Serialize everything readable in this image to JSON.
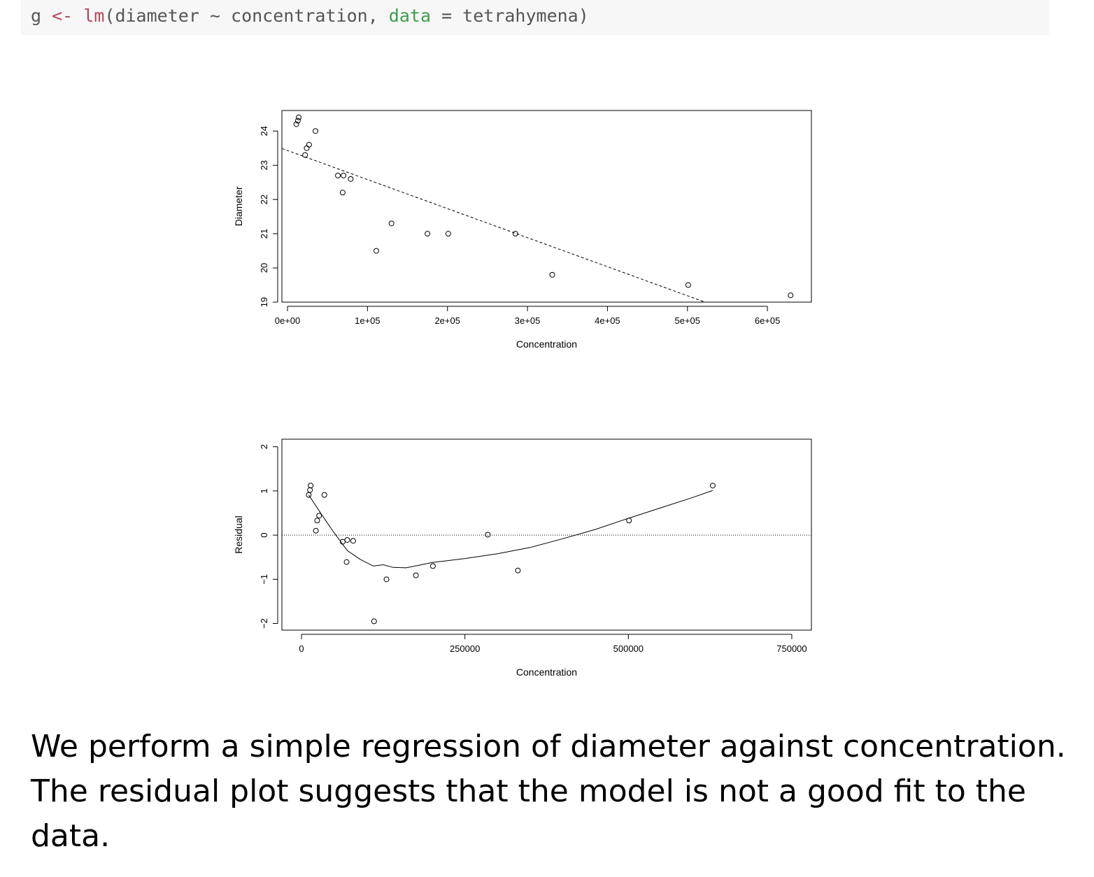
{
  "code": {
    "var": "g",
    "assign": "<-",
    "fn": "lm",
    "open": "(diameter ~ concentration, ",
    "arg": "data",
    "rest": " = tetrahymena)"
  },
  "chart_data": [
    {
      "type": "scatter",
      "xlabel": "Concentration",
      "ylabel": "Diameter",
      "xlim": [
        -7000,
        655000
      ],
      "ylim": [
        19,
        24.6
      ],
      "x_ticks": [
        0,
        100000,
        200000,
        300000,
        400000,
        500000,
        600000
      ],
      "x_tick_labels": [
        "0e+00",
        "1e+05",
        "2e+05",
        "3e+05",
        "4e+05",
        "5e+05",
        "6e+05"
      ],
      "y_ticks": [
        19,
        20,
        21,
        22,
        23,
        24
      ],
      "y_tick_labels": [
        "19",
        "20",
        "21",
        "22",
        "23",
        "24"
      ],
      "points": {
        "x": [
          11000,
          13000,
          14000,
          35000,
          27000,
          24000,
          22000,
          63000,
          70000,
          79000,
          69000,
          111000,
          130000,
          175000,
          201000,
          285000,
          331000,
          501000,
          629000
        ],
        "y": [
          24.2,
          24.3,
          24.4,
          24.0,
          23.6,
          23.5,
          23.3,
          22.7,
          22.7,
          22.6,
          22.2,
          20.5,
          21.3,
          21.0,
          21.0,
          21.0,
          19.8,
          19.5,
          19.2
        ]
      },
      "fit_line": {
        "style": "dashed",
        "x": [
          -7000,
          522000
        ],
        "y": [
          23.49,
          19.0
        ]
      }
    },
    {
      "type": "scatter",
      "xlabel": "Concentration",
      "ylabel": "Residual",
      "xlim": [
        -30000,
        780000
      ],
      "ylim": [
        -2.15,
        2.17
      ],
      "x_ticks": [
        0,
        250000,
        500000,
        750000
      ],
      "x_tick_labels": [
        "0",
        "250000",
        "500000",
        "750000"
      ],
      "y_ticks": [
        -2,
        -1,
        0,
        1,
        2
      ],
      "y_tick_labels": [
        "−2",
        "−1",
        "0",
        "1",
        "2"
      ],
      "reference_line": {
        "y": 0,
        "style": "dotted"
      },
      "points": {
        "x": [
          11000,
          13000,
          14000,
          35000,
          27000,
          24000,
          22000,
          63000,
          70000,
          79000,
          69000,
          111000,
          130000,
          175000,
          201000,
          285000,
          331000,
          501000,
          629000
        ],
        "y": [
          0.91,
          1.02,
          1.12,
          0.91,
          0.44,
          0.33,
          0.1,
          -0.15,
          -0.11,
          -0.13,
          -0.61,
          -1.95,
          -1.0,
          -0.91,
          -0.7,
          0.01,
          -0.8,
          0.33,
          1.12
        ]
      },
      "smooth_line": {
        "style": "solid",
        "x": [
          11000,
          30000,
          50000,
          70000,
          90000,
          110000,
          125000,
          140000,
          160000,
          180000,
          200000,
          250000,
          300000,
          350000,
          400000,
          450000,
          500000,
          550000,
          600000,
          629000
        ],
        "y": [
          0.91,
          0.48,
          0.05,
          -0.35,
          -0.55,
          -0.7,
          -0.67,
          -0.73,
          -0.74,
          -0.68,
          -0.62,
          -0.53,
          -0.42,
          -0.28,
          -0.08,
          0.13,
          0.38,
          0.62,
          0.86,
          1.01
        ]
      }
    }
  ],
  "prose": "We perform a simple regression of diameter against concentration. The residual plot suggests that the model is not a good fit to the data."
}
